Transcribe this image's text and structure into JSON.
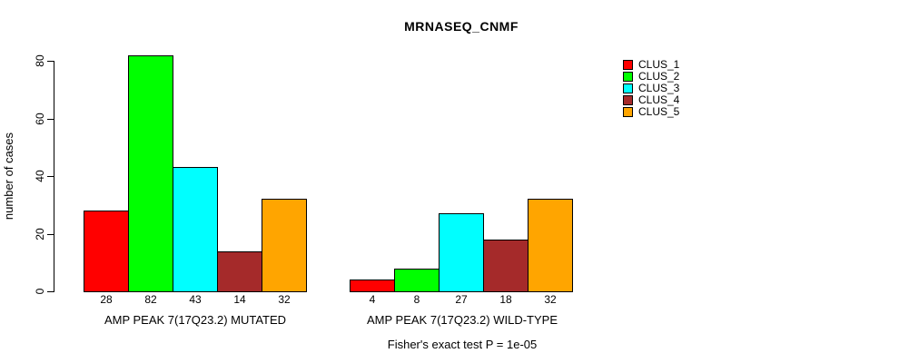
{
  "chart_data": {
    "type": "bar",
    "title": "MRNASEQ_CNMF",
    "xlabel": "",
    "ylabel": "number of cases",
    "ylim": [
      0,
      80
    ],
    "yticks": [
      0,
      20,
      40,
      60,
      80
    ],
    "grid": false,
    "legend_position": "right",
    "bar_value_labels": true,
    "categories": [
      "AMP PEAK 7(17Q23.2) MUTATED",
      "AMP PEAK 7(17Q23.2) WILD-TYPE"
    ],
    "series": [
      {
        "name": "CLUS_1",
        "color": "#FF0000",
        "values": [
          28,
          4
        ]
      },
      {
        "name": "CLUS_2",
        "color": "#00FF00",
        "values": [
          82,
          8
        ]
      },
      {
        "name": "CLUS_3",
        "color": "#00FFFF",
        "values": [
          43,
          27
        ]
      },
      {
        "name": "CLUS_4",
        "color": "#A52A2A",
        "values": [
          14,
          18
        ]
      },
      {
        "name": "CLUS_5",
        "color": "#FFA500",
        "values": [
          32,
          32
        ]
      }
    ],
    "annotation": "Fisher's exact test P = 1e-05",
    "bar_border_color": "#000000",
    "background_color": "#FFFFFF"
  }
}
